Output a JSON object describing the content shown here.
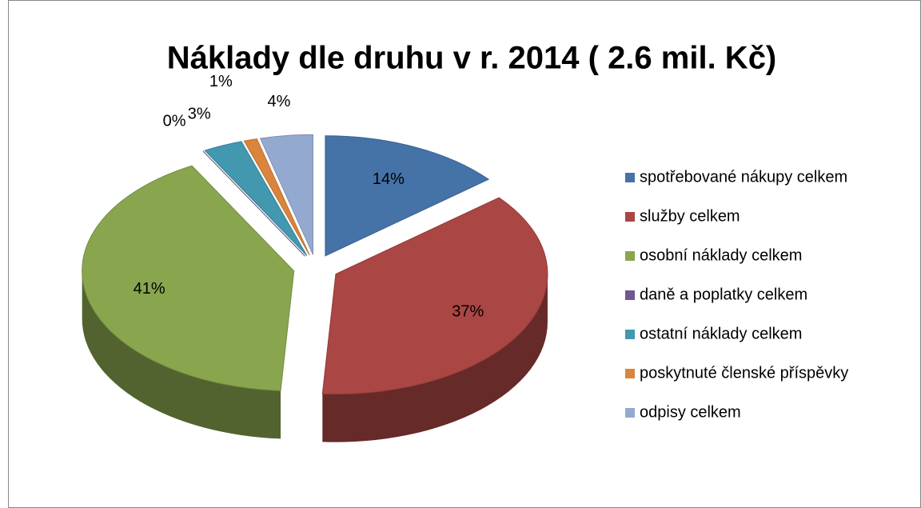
{
  "chart_data": {
    "type": "pie3d",
    "title": "Náklady dle druhu v r. 2014 ( 2.6 mil. Kč)",
    "categories": [
      "spotřebované nákupy celkem",
      "služby celkem",
      "osobní náklady celkem",
      "daně a poplatky celkem",
      "ostatní náklady celkem",
      "poskytnuté členské příspěvky",
      "odpisy celkem"
    ],
    "values": [
      14,
      37,
      41,
      0,
      3,
      1,
      4
    ],
    "value_labels": [
      "14%",
      "37%",
      "41%",
      "0%",
      "3%",
      "1%",
      "4%"
    ],
    "colors": [
      "#4572a7",
      "#aa4643",
      "#89a54e",
      "#71588f",
      "#4198af",
      "#db843d",
      "#93a9cf"
    ],
    "legend": "right"
  }
}
